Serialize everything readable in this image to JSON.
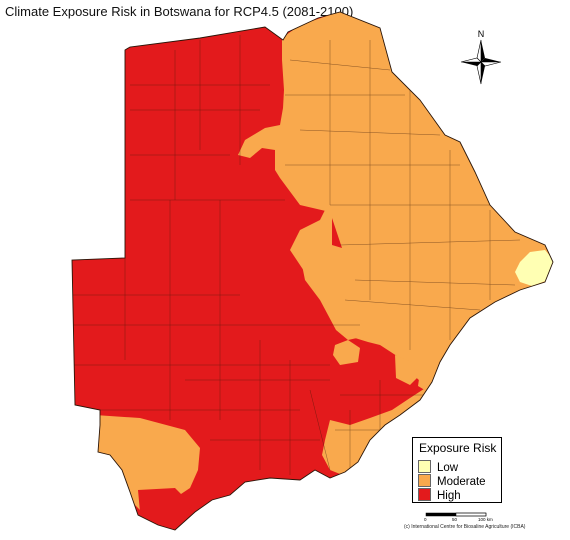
{
  "map": {
    "title": "Climate Exposure Risk in Botswana for RCP4.5 (2081-2100)"
  },
  "north_arrow": {
    "label": "N"
  },
  "legend": {
    "title": "Exposure Risk",
    "items": [
      {
        "label": "Low",
        "color": "#ffffb3"
      },
      {
        "label": "Moderate",
        "color": "#f9a94d"
      },
      {
        "label": "High",
        "color": "#e31a1c"
      }
    ]
  },
  "scale_bar": {
    "ticks": [
      "0",
      "50",
      "100 km"
    ]
  },
  "credit": "(c) International Centre for Biosaline Agriculture (ICBA)"
}
